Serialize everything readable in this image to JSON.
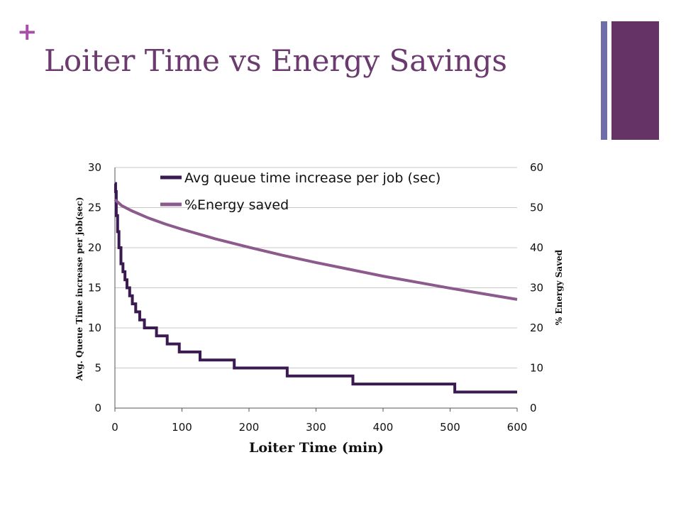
{
  "slide": {
    "plus_symbol": "+",
    "title": "Loiter Time vs Energy Savings"
  },
  "colors": {
    "title": "#6b3a6e",
    "plus": "#a64fa6",
    "bar_thin": "#6f6ea8",
    "bar_wide": "#663366",
    "series_queue": "#3b1a52",
    "series_energy": "#8c5a8c",
    "grid": "#c8c8c8",
    "axis": "#555555"
  },
  "chart_data": {
    "type": "line",
    "xlabel": "Loiter Time (min)",
    "ylabel": "Avg. Queue Time increase per job(sec)",
    "y2label": "% Energy Saved",
    "xlim": [
      0,
      600
    ],
    "ylim": [
      0,
      30
    ],
    "y2lim": [
      0,
      60
    ],
    "xticks": [
      0,
      100,
      200,
      300,
      400,
      500,
      600
    ],
    "yticks": [
      0,
      5,
      10,
      15,
      20,
      25,
      30
    ],
    "y2ticks": [
      0,
      10,
      20,
      30,
      40,
      50,
      60
    ],
    "grid": true,
    "legend_position": "top",
    "series": [
      {
        "name": "Avg queue time increase per job (sec)",
        "axis": "left",
        "step": true,
        "x": [
          0,
          1,
          2,
          4,
          6,
          9,
          12,
          15,
          18,
          22,
          26,
          31,
          37,
          44,
          52,
          62,
          78,
          96,
          127,
          178,
          257,
          355,
          507,
          600
        ],
        "y": [
          28,
          27,
          24,
          22,
          20,
          18,
          17,
          16,
          15,
          14,
          13,
          12,
          11,
          10,
          10,
          9,
          8,
          7,
          6,
          5,
          4,
          3,
          2,
          2
        ]
      },
      {
        "name": "%Energy saved",
        "axis": "right",
        "x": [
          0,
          10,
          25,
          50,
          75,
          100,
          150,
          200,
          250,
          300,
          350,
          400,
          450,
          500,
          550,
          600
        ],
        "y": [
          52,
          50.5,
          49.2,
          47.4,
          45.9,
          44.6,
          42.2,
          40.1,
          38.1,
          36.3,
          34.6,
          32.9,
          31.4,
          29.9,
          28.5,
          27.1
        ]
      }
    ]
  }
}
